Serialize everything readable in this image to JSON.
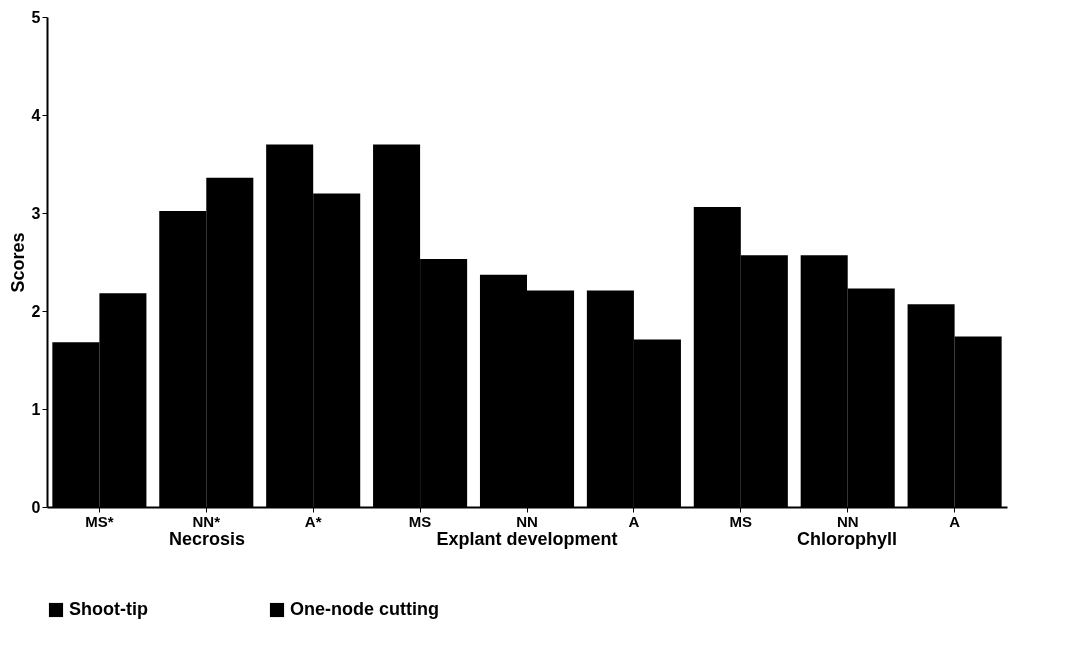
{
  "chart_data": {
    "type": "bar",
    "ylabel": "Scores",
    "categories": [
      "MS*",
      "NN*",
      "A*",
      "MS",
      "NN",
      "A",
      "MS",
      "NN",
      "A"
    ],
    "series": [
      {
        "name": "Shoot-tip",
        "color": "#000000",
        "values": [
          1.68,
          3.02,
          3.7,
          3.7,
          2.37,
          2.21,
          3.06,
          2.57,
          2.07
        ]
      },
      {
        "name": "One-node cutting",
        "color": "#000000",
        "values": [
          2.18,
          3.36,
          3.2,
          2.53,
          2.21,
          1.71,
          2.57,
          2.23,
          1.74
        ]
      }
    ],
    "ylim": [
      0,
      5
    ],
    "yticks": [
      0,
      1,
      2,
      3,
      4,
      5
    ],
    "grid": false,
    "legend": "bottom",
    "annotations": [
      "Necrosis",
      "Explant development",
      "Chlorophyll"
    ]
  }
}
